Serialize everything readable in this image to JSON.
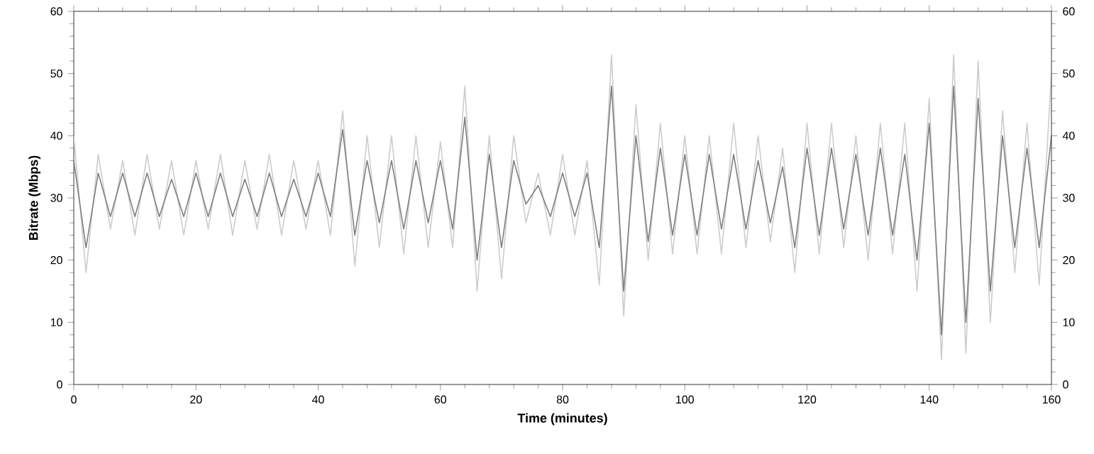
{
  "chart_data": {
    "type": "line",
    "xlabel": "Time (minutes)",
    "ylabel": "Bitrate (Mbps)",
    "x": [
      0,
      2,
      4,
      6,
      8,
      10,
      12,
      14,
      16,
      18,
      20,
      22,
      24,
      26,
      28,
      30,
      32,
      34,
      36,
      38,
      40,
      42,
      44,
      46,
      48,
      50,
      52,
      54,
      56,
      58,
      60,
      62,
      64,
      66,
      68,
      70,
      72,
      74,
      76,
      78,
      80,
      82,
      84,
      86,
      88,
      90,
      92,
      94,
      96,
      98,
      100,
      102,
      104,
      106,
      108,
      110,
      112,
      114,
      116,
      118,
      120,
      122,
      124,
      126,
      128,
      130,
      132,
      134,
      136,
      138,
      140,
      142,
      144,
      146,
      148,
      150,
      152,
      154,
      156,
      158,
      160
    ],
    "series": [
      {
        "color": "#cccccc",
        "values": [
          40,
          18,
          37,
          25,
          36,
          24,
          37,
          25,
          36,
          24,
          36,
          25,
          37,
          24,
          36,
          25,
          37,
          24,
          36,
          25,
          36,
          24,
          44,
          19,
          40,
          22,
          40,
          21,
          40,
          22,
          39,
          22,
          48,
          15,
          40,
          17,
          40,
          26,
          34,
          24,
          37,
          24,
          36,
          16,
          53,
          11,
          45,
          20,
          42,
          21,
          40,
          21,
          40,
          21,
          42,
          22,
          40,
          23,
          38,
          18,
          42,
          21,
          42,
          22,
          40,
          20,
          42,
          21,
          42,
          15,
          46,
          4,
          53,
          5,
          52,
          10,
          44,
          18,
          42,
          16,
          50
        ]
      },
      {
        "color": "#7f7f7f",
        "values": [
          36,
          22,
          34,
          27,
          34,
          27,
          34,
          27,
          33,
          27,
          34,
          27,
          34,
          27,
          33,
          27,
          34,
          27,
          33,
          27,
          34,
          27,
          41,
          24,
          36,
          26,
          36,
          25,
          36,
          26,
          36,
          25,
          43,
          20,
          37,
          22,
          36,
          29,
          32,
          27,
          34,
          27,
          34,
          22,
          48,
          15,
          40,
          23,
          38,
          24,
          37,
          24,
          37,
          25,
          37,
          25,
          36,
          26,
          35,
          22,
          38,
          24,
          38,
          25,
          37,
          24,
          38,
          24,
          37,
          20,
          42,
          8,
          48,
          10,
          46,
          15,
          40,
          22,
          38,
          22,
          40
        ]
      }
    ],
    "xlim": [
      0,
      160
    ],
    "xticks": [
      0,
      20,
      40,
      60,
      80,
      100,
      120,
      140,
      160
    ],
    "ylim": [
      0,
      60
    ],
    "yticks": [
      0,
      10,
      20,
      30,
      40,
      50,
      60
    ],
    "y2lim": [
      0,
      60
    ],
    "y2ticks": [
      0,
      10,
      20,
      30,
      40,
      50,
      60
    ],
    "marker": "none",
    "line_style": "solid",
    "grid": false
  }
}
